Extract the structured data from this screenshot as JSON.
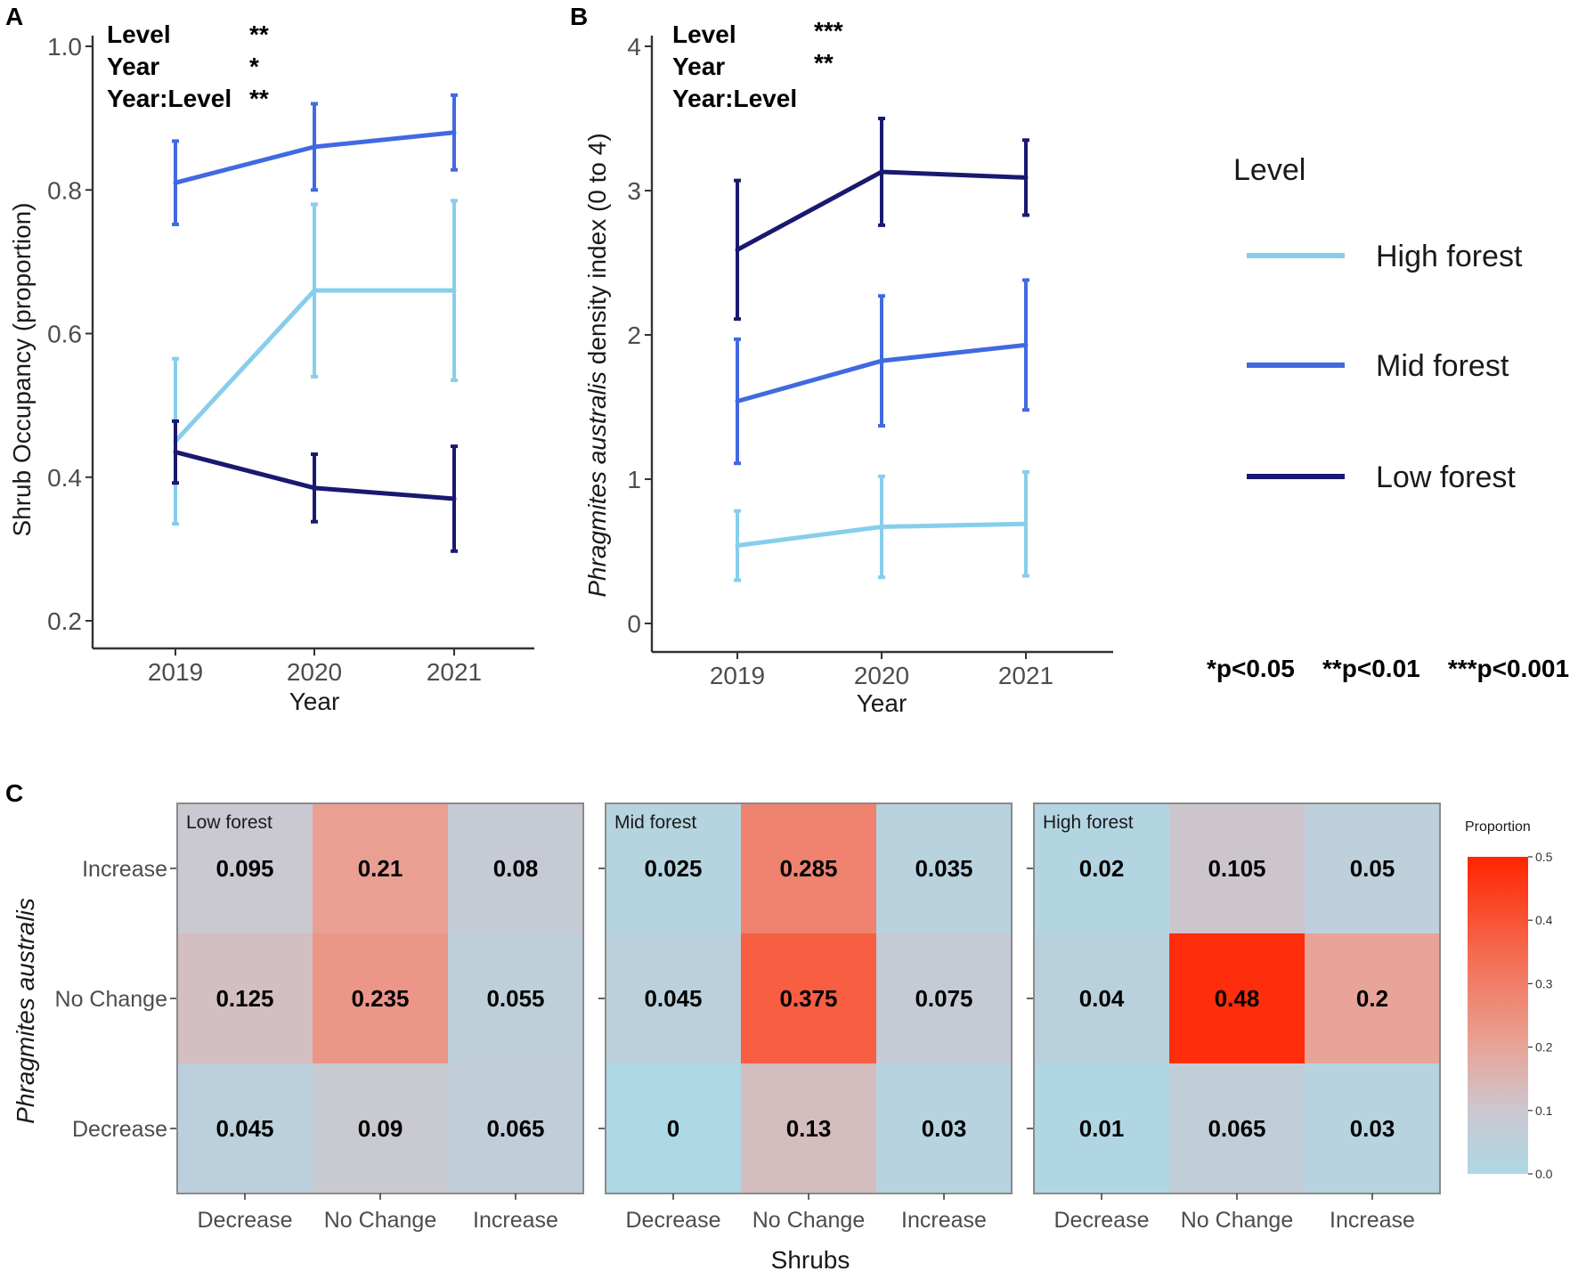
{
  "chart_data": [
    {
      "type": "line",
      "panel": "A",
      "title": "",
      "xlabel": "Year",
      "ylabel": "Shrub Occupancy (proportion)",
      "ylim": [
        0.2,
        1.0
      ],
      "yticks": [
        "0.2",
        "0.4",
        "0.6",
        "0.8",
        "1.0"
      ],
      "categories": [
        "2019",
        "2020",
        "2021"
      ],
      "series": [
        {
          "name": "High forest",
          "color": "#87ceeb",
          "values": [
            0.45,
            0.66,
            0.66
          ],
          "lower": [
            0.335,
            0.54,
            0.535
          ],
          "upper": [
            0.565,
            0.78,
            0.785
          ]
        },
        {
          "name": "Mid forest",
          "color": "#4169e1",
          "values": [
            0.81,
            0.86,
            0.88
          ],
          "lower": [
            0.752,
            0.8,
            0.828
          ],
          "upper": [
            0.868,
            0.92,
            0.932
          ]
        },
        {
          "name": "Low forest",
          "color": "#191970",
          "values": [
            0.435,
            0.385,
            0.37
          ],
          "lower": [
            0.392,
            0.338,
            0.297
          ],
          "upper": [
            0.478,
            0.432,
            0.443
          ]
        }
      ],
      "annotations": [
        {
          "label": "Level",
          "stars": "**"
        },
        {
          "label": "Year",
          "stars": "*"
        },
        {
          "label": "Year:Level",
          "stars": "**"
        }
      ]
    },
    {
      "type": "line",
      "panel": "B",
      "title": "",
      "xlabel": "Year",
      "ylabel_italic": "Phragmites australis",
      "ylabel_rest": " density index (0 to 4)",
      "ylim": [
        0,
        4
      ],
      "yticks": [
        "0",
        "1",
        "2",
        "3",
        "4"
      ],
      "categories": [
        "2019",
        "2020",
        "2021"
      ],
      "series": [
        {
          "name": "High forest",
          "color": "#87ceeb",
          "values": [
            0.54,
            0.67,
            0.69
          ],
          "lower": [
            0.3,
            0.32,
            0.33
          ],
          "upper": [
            0.78,
            1.02,
            1.05
          ]
        },
        {
          "name": "Mid forest",
          "color": "#4169e1",
          "values": [
            1.54,
            1.82,
            1.93
          ],
          "lower": [
            1.11,
            1.37,
            1.48
          ],
          "upper": [
            1.97,
            2.27,
            2.38
          ]
        },
        {
          "name": "Low forest",
          "color": "#191970",
          "values": [
            2.59,
            3.13,
            3.09
          ],
          "lower": [
            2.11,
            2.76,
            2.83
          ],
          "upper": [
            3.07,
            3.5,
            3.35
          ]
        }
      ],
      "annotations": [
        {
          "label": "Level",
          "stars": "***"
        },
        {
          "label": "Year",
          "stars": "**"
        },
        {
          "label": "Year:Level",
          "stars": ""
        }
      ]
    },
    {
      "type": "heatmap",
      "panel": "C",
      "xlabel": "Shrubs",
      "ylabel": "Phragmites australis",
      "x_categories": [
        "Decrease",
        "No Change",
        "Increase"
      ],
      "y_categories": [
        "Increase",
        "No Change",
        "Decrease"
      ],
      "colorbar": {
        "title": "Proportion",
        "min": 0.0,
        "max": 0.5,
        "low_color": "#add8e6",
        "high_color": "#ff2400",
        "ticks": [
          "0.0",
          "0.1",
          "0.2",
          "0.3",
          "0.4",
          "0.5"
        ]
      },
      "facets": [
        {
          "name": "Low forest",
          "values": [
            [
              "0.095",
              "0.21",
              "0.08"
            ],
            [
              "0.125",
              "0.235",
              "0.055"
            ],
            [
              "0.045",
              "0.09",
              "0.065"
            ]
          ]
        },
        {
          "name": "Mid forest",
          "values": [
            [
              "0.025",
              "0.285",
              "0.035"
            ],
            [
              "0.045",
              "0.375",
              "0.075"
            ],
            [
              "0",
              "0.13",
              "0.03"
            ]
          ]
        },
        {
          "name": "High forest",
          "values": [
            [
              "0.02",
              "0.105",
              "0.05"
            ],
            [
              "0.04",
              "0.48",
              "0.2"
            ],
            [
              "0.01",
              "0.065",
              "0.03"
            ]
          ]
        }
      ]
    }
  ],
  "legend": {
    "title": "Level",
    "items": [
      {
        "label": "High forest",
        "color": "#87ceeb"
      },
      {
        "label": "Mid forest",
        "color": "#4169e1"
      },
      {
        "label": "Low forest",
        "color": "#191970"
      }
    ]
  },
  "significance_key": "*p<0.05    **p<0.01    ***p<0.001"
}
